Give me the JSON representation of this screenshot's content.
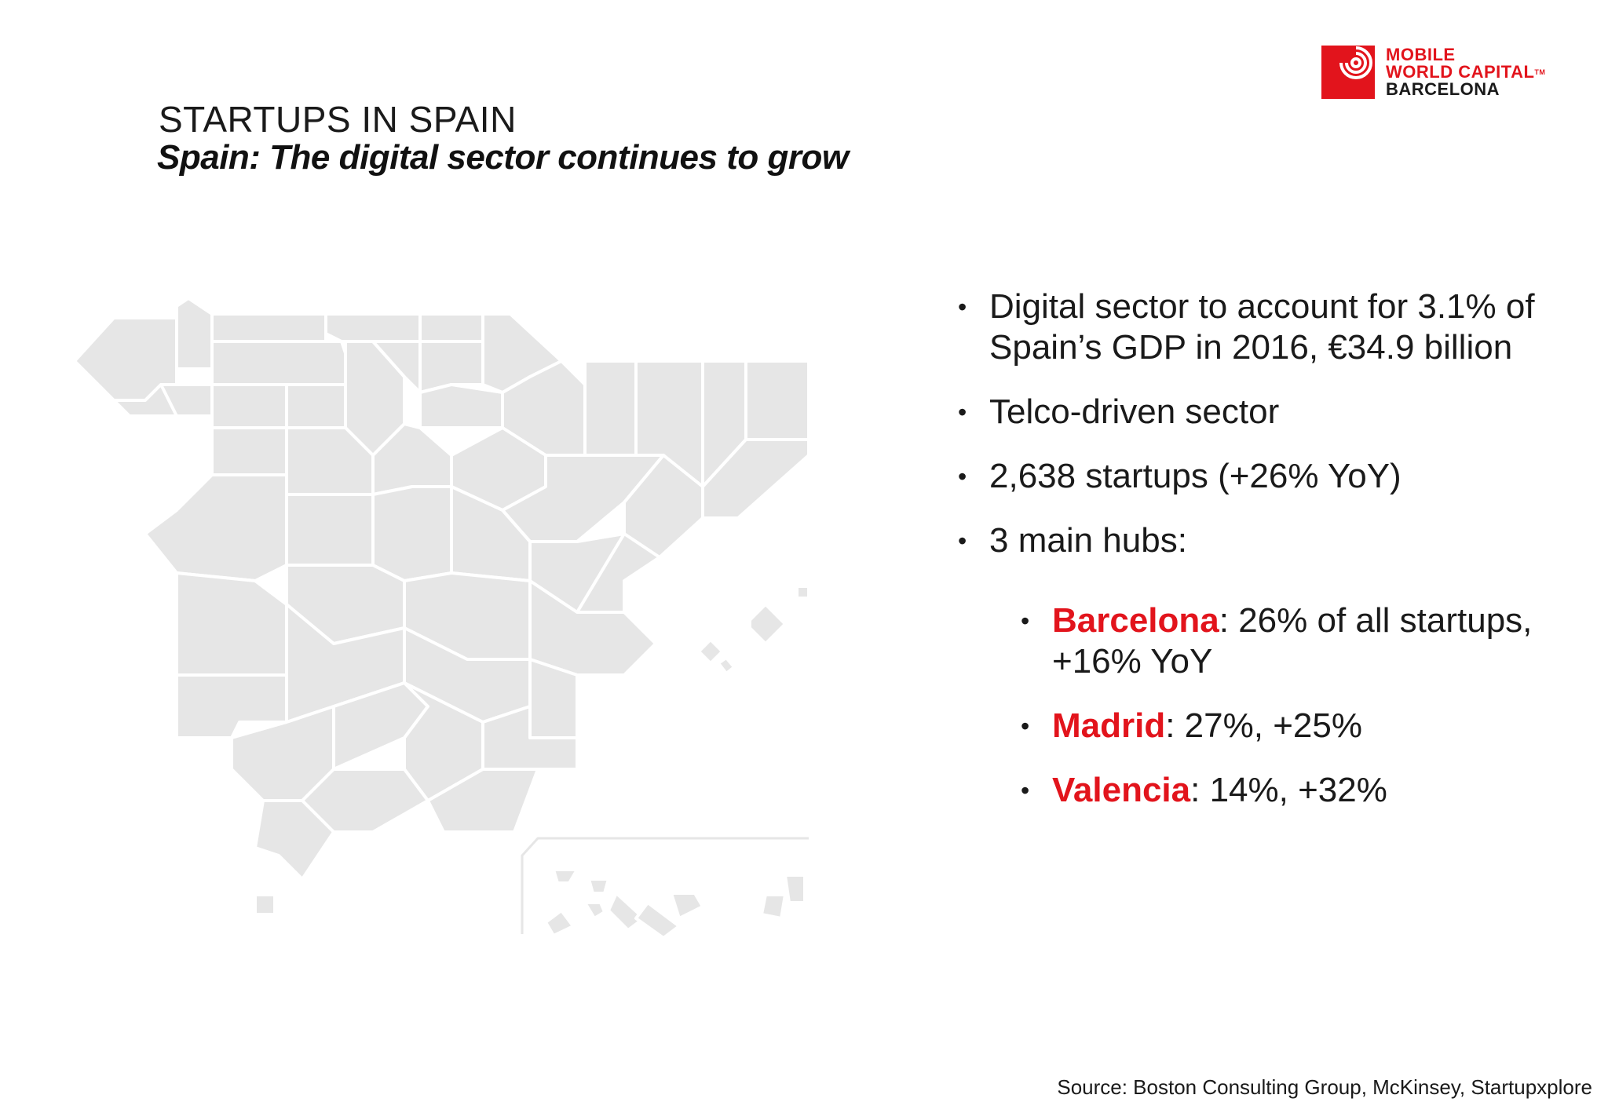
{
  "brand": {
    "line1": "MOBILE",
    "line2": "WORLD CAPITAL",
    "line3": "BARCELONA",
    "tm": "TM",
    "color": "#e2141c"
  },
  "header": {
    "kicker": "STARTUPS IN SPAIN",
    "headline": "Spain: The digital sector continues to grow"
  },
  "bullets": [
    {
      "text": "Digital sector to account for 3.1% of Spain’s GDP in 2016, €34.9 billion"
    },
    {
      "text": "Telco-driven sector"
    },
    {
      "text": "2,638 startups (+26% YoY)"
    },
    {
      "text": "3 main hubs:"
    }
  ],
  "hubs": [
    {
      "name": "Barcelona",
      "stat": ": 26% of all startups, +16% YoY"
    },
    {
      "name": "Madrid",
      "stat": ": 27%, +25%"
    },
    {
      "name": "Valencia",
      "stat": ": 14%, +32%"
    }
  ],
  "source": "Source: Boston Consulting Group, McKinsey, Startupxplore",
  "colors": {
    "accent": "#e2141c",
    "map_fill": "#e6e6e6",
    "text": "#1a1a1a"
  }
}
